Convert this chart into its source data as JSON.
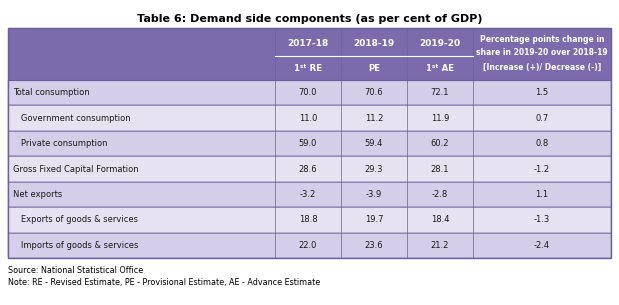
{
  "title": "Table 6: Demand side components (as per cent of GDP)",
  "header_bg": "#7B6BAD",
  "header_text_color": "#FFFFFF",
  "row_bg_even": "#D4CEE8",
  "row_bg_odd": "#E6E2F2",
  "border_color": "#6B5FA0",
  "text_color": "#1a1a1a",
  "rows": [
    {
      "label": "Total consumption",
      "indent": false,
      "vals": [
        "70.0",
        "70.6",
        "72.1",
        "1.5"
      ]
    },
    {
      "label": "Government consumption",
      "indent": true,
      "vals": [
        "11.0",
        "11.2",
        "11.9",
        "0.7"
      ]
    },
    {
      "label": "Private consumption",
      "indent": true,
      "vals": [
        "59.0",
        "59.4",
        "60.2",
        "0.8"
      ]
    },
    {
      "label": "Gross Fixed Capital Formation",
      "indent": false,
      "vals": [
        "28.6",
        "29.3",
        "28.1",
        "-1.2"
      ]
    },
    {
      "label": "Net exports",
      "indent": false,
      "vals": [
        "-3.2",
        "-3.9",
        "-2.8",
        "1.1"
      ]
    },
    {
      "label": "Exports of goods & services",
      "indent": true,
      "vals": [
        "18.8",
        "19.7",
        "18.4",
        "-1.3"
      ]
    },
    {
      "label": "Imports of goods & services",
      "indent": true,
      "vals": [
        "22.0",
        "23.6",
        "21.2",
        "-2.4"
      ]
    }
  ],
  "source": "Source: National Statistical Office",
  "note": "Note: RE - Revised Estimate, PE - Provisional Estimate, AE - Advance Estimate",
  "year_labels": [
    "2017-18",
    "2018-19",
    "2019-20"
  ],
  "sub_labels": [
    "1ˢᵗ RE",
    "PE",
    "1ˢᵗ AE"
  ],
  "last_col_lines": [
    "Percentage points change in",
    "share in 2019-20 over 2018-19",
    "[Increase (+)/ Decrease (-)]"
  ]
}
